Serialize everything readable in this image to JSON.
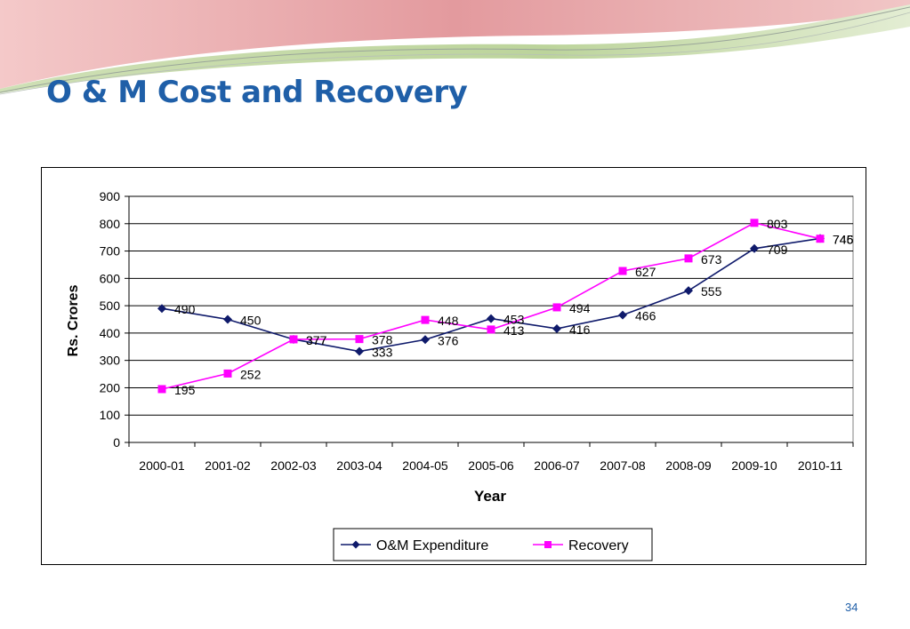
{
  "slide": {
    "title": "O & M Cost and Recovery",
    "page_number": "34"
  },
  "colors": {
    "title": "#1f5fa8",
    "expenditure": "#0f1a6b",
    "recovery": "#ff00ff",
    "banner_pink": "#e9a8ab",
    "banner_green": "#c9dcae"
  },
  "chart_data": {
    "type": "line",
    "categories": [
      "2000-01",
      "2001-02",
      "2002-03",
      "2003-04",
      "2004-05",
      "2005-06",
      "2006-07",
      "2007-08",
      "2008-09",
      "2009-10",
      "2010-11"
    ],
    "series": [
      {
        "name": "O&M Expenditure",
        "marker": "diamond",
        "values": [
          490,
          450,
          377,
          333,
          376,
          453,
          416,
          466,
          555,
          709,
          746
        ]
      },
      {
        "name": "Recovery",
        "marker": "square",
        "values": [
          195,
          252,
          377,
          378,
          448,
          413,
          494,
          627,
          673,
          803,
          745
        ]
      }
    ],
    "xlabel": "Year",
    "ylabel": "Rs. Crores",
    "ylim": [
      0,
      900
    ],
    "yticks": [
      0,
      100,
      200,
      300,
      400,
      500,
      600,
      700,
      800,
      900
    ],
    "grid": true,
    "legend": "bottom"
  }
}
